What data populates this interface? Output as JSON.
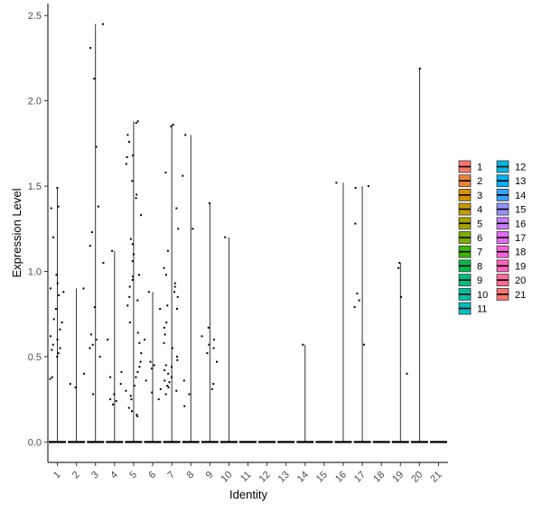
{
  "chart_data": {
    "type": "violin",
    "xlabel": "Identity",
    "ylabel": "Expression Level",
    "ylim": [
      -0.12,
      2.57
    ],
    "yticks": [
      "0.0",
      "0.5",
      "1.0",
      "1.5",
      "2.0",
      "2.5"
    ],
    "ytick_values": [
      0,
      0.5,
      1.0,
      1.5,
      2.0,
      2.5
    ],
    "categories": [
      "1",
      "2",
      "3",
      "4",
      "5",
      "6",
      "7",
      "8",
      "9",
      "10",
      "11",
      "12",
      "13",
      "14",
      "15",
      "16",
      "17",
      "18",
      "19",
      "20",
      "21"
    ],
    "legend_position": "right",
    "colors": [
      "#F8766D",
      "#EB8335",
      "#D89000",
      "#BF9C00",
      "#A3A500",
      "#7CAE00",
      "#39B600",
      "#00BB4E",
      "#00BF7D",
      "#00C1A3",
      "#00BFC4",
      "#00BAE0",
      "#00B0F6",
      "#35A2FF",
      "#9590FF",
      "#C77CFF",
      "#E76BF3",
      "#FA62DB",
      "#FF62BC",
      "#FF6A98",
      "#F8766D"
    ],
    "max_values": [
      1.49,
      0.9,
      2.45,
      1.12,
      1.88,
      0.88,
      1.86,
      1.8,
      1.4,
      1.2,
      0.0,
      0.0,
      0.0,
      0.57,
      0.0,
      1.52,
      1.5,
      0.0,
      1.05,
      2.19,
      0.0
    ],
    "points": [
      [
        1.49,
        1.38,
        1.37,
        1.2,
        0.98,
        0.93,
        0.9,
        0.88,
        0.86,
        0.78,
        0.72,
        0.7,
        0.66,
        0.62,
        0.6,
        0.57,
        0.55,
        0.54,
        0.52,
        0.5,
        0.38,
        0.37
      ],
      [
        0.9,
        0.4,
        0.34,
        0.32
      ],
      [
        2.45,
        2.31,
        2.13,
        1.73,
        1.38,
        1.23,
        1.15,
        1.05,
        0.79,
        0.63,
        0.6,
        0.57,
        0.55,
        0.5,
        0.28
      ],
      [
        1.12,
        0.6,
        0.41,
        0.38,
        0.34,
        0.28,
        0.25,
        0.24,
        0.22
      ],
      [
        1.88,
        1.87,
        1.8,
        1.76,
        1.68,
        1.67,
        1.63,
        1.53,
        1.45,
        1.43,
        1.33,
        1.19,
        1.16,
        1.1,
        1.06,
        0.98,
        0.97,
        0.95,
        0.91,
        0.85,
        0.83,
        0.8,
        0.7,
        0.64,
        0.58,
        0.52,
        0.47,
        0.44,
        0.41,
        0.38,
        0.33,
        0.3,
        0.27,
        0.25,
        0.2,
        0.18,
        0.16,
        0.15
      ],
      [
        0.88,
        0.78,
        0.6,
        0.47,
        0.45,
        0.43,
        0.36,
        0.31,
        0.29,
        0.25
      ],
      [
        1.86,
        1.85,
        1.58,
        1.37,
        1.25,
        1.12,
        1.02,
        0.98,
        0.93,
        0.91,
        0.88,
        0.85,
        0.8,
        0.78,
        0.7,
        0.67,
        0.63,
        0.58,
        0.55,
        0.5,
        0.48,
        0.45,
        0.44,
        0.42,
        0.4,
        0.38,
        0.36,
        0.35,
        0.33,
        0.32,
        0.3,
        0.28
      ],
      [
        1.8,
        1.56,
        1.25,
        0.36,
        0.28,
        0.21
      ],
      [
        1.4,
        0.67,
        0.62,
        0.6,
        0.57,
        0.55,
        0.52,
        0.47,
        0.34,
        0.31
      ],
      [
        1.2
      ],
      [],
      [],
      [],
      [
        0.57
      ],
      [],
      [
        1.52
      ],
      [
        1.5,
        1.49,
        1.28,
        0.87,
        0.83,
        0.79,
        0.57
      ],
      [],
      [
        1.05,
        1.02,
        0.85,
        0.4
      ],
      [
        2.19
      ],
      []
    ]
  },
  "legend": {
    "items": [
      "1",
      "2",
      "3",
      "4",
      "5",
      "6",
      "7",
      "8",
      "9",
      "10",
      "11",
      "12",
      "13",
      "14",
      "15",
      "16",
      "17",
      "18",
      "19",
      "20",
      "21"
    ]
  }
}
